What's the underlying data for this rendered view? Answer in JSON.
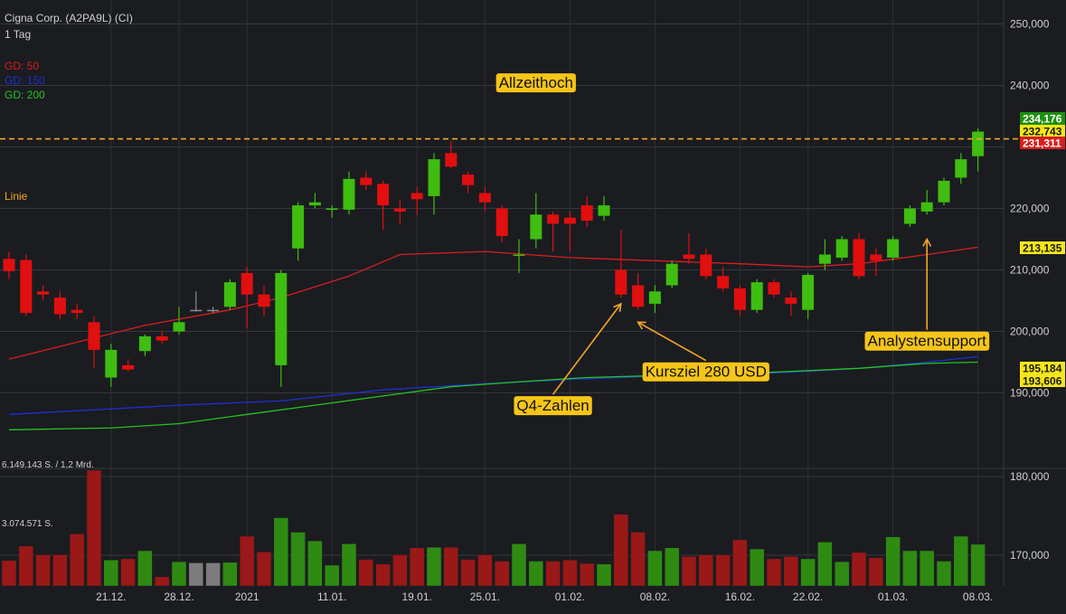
{
  "header": {
    "instrument": "Cigna Corp. (A2PA9L) (CI)",
    "timeframe": "1 Tag"
  },
  "indicators": [
    {
      "label": "GD: 50",
      "color": "#d81e1e"
    },
    {
      "label": "GD: 150",
      "color": "#1f2fd8"
    },
    {
      "label": "GD: 200",
      "color": "#23c21f"
    }
  ],
  "line_label": {
    "text": "Linie",
    "color": "#f5a623"
  },
  "volume_labels": {
    "max": "6.149.143 S. / 1,2 Mrd.",
    "mid": "3.074.571 S."
  },
  "colors": {
    "up": "#3fbd10",
    "down": "#e10f0f",
    "neutral": "#8c8c8c",
    "background": "#1a1c20",
    "annotation": "#f5c518"
  },
  "chart_data": {
    "type": "candlestick",
    "title": "Cigna Corp. (A2PA9L) (CI)",
    "y_axis": {
      "ticks": [
        {
          "value": 250000,
          "label": "250,000"
        },
        {
          "value": 240000,
          "label": "240,000"
        },
        {
          "value": 230000,
          "label": ""
        },
        {
          "value": 220000,
          "label": "220,000"
        },
        {
          "value": 210000,
          "label": "210,000"
        },
        {
          "value": 200000,
          "label": "200,000"
        },
        {
          "value": 190000,
          "label": "190,000"
        },
        {
          "value": 180000,
          "label": "180,000"
        },
        {
          "value": 170000,
          "label": "170,000"
        }
      ]
    },
    "x_axis": {
      "ticks": [
        {
          "label": "21.12.",
          "index": 6
        },
        {
          "label": "28.12.",
          "index": 10
        },
        {
          "label": "2021",
          "index": 14
        },
        {
          "label": "11.01.",
          "index": 19
        },
        {
          "label": "19.01.",
          "index": 24
        },
        {
          "label": "25.01.",
          "index": 28
        },
        {
          "label": "01.02.",
          "index": 33
        },
        {
          "label": "08.02.",
          "index": 38
        },
        {
          "label": "16.02.",
          "index": 43
        },
        {
          "label": "22.02.",
          "index": 47
        },
        {
          "label": "01.03.",
          "index": 52
        },
        {
          "label": "08.03.",
          "index": 57
        }
      ]
    },
    "candles": [
      {
        "o": 211.8,
        "h": 213.0,
        "l": 208.5,
        "c": 209.8,
        "v": 0.44,
        "dir": "down"
      },
      {
        "o": 211.6,
        "h": 212.5,
        "l": 202.5,
        "c": 203.0,
        "v": 0.69,
        "dir": "down"
      },
      {
        "o": 206.5,
        "h": 207.5,
        "l": 205.0,
        "c": 206.0,
        "v": 0.54,
        "dir": "down"
      },
      {
        "o": 205.5,
        "h": 206.5,
        "l": 202.0,
        "c": 202.8,
        "v": 0.54,
        "dir": "down"
      },
      {
        "o": 203.5,
        "h": 204.5,
        "l": 202.0,
        "c": 203.0,
        "v": 0.9,
        "dir": "down"
      },
      {
        "o": 201.5,
        "h": 202.5,
        "l": 194.0,
        "c": 197.0,
        "v": 2.0,
        "dir": "down"
      },
      {
        "o": 192.5,
        "h": 198.0,
        "l": 191.0,
        "c": 197.0,
        "v": 0.45,
        "dir": "up"
      },
      {
        "o": 194.5,
        "h": 195.5,
        "l": 193.5,
        "c": 193.8,
        "v": 0.47,
        "dir": "down"
      },
      {
        "o": 196.8,
        "h": 199.5,
        "l": 196.0,
        "c": 199.2,
        "v": 0.61,
        "dir": "up"
      },
      {
        "o": 199.2,
        "h": 200.0,
        "l": 198.0,
        "c": 198.5,
        "v": 0.16,
        "dir": "down"
      },
      {
        "o": 200.0,
        "h": 204.0,
        "l": 199.5,
        "c": 201.5,
        "v": 0.42,
        "dir": "up"
      },
      {
        "o": 203.5,
        "h": 206.5,
        "l": 203.2,
        "c": 203.5,
        "v": 0.4,
        "dir": "neutral"
      },
      {
        "o": 203.5,
        "h": 204.0,
        "l": 203.0,
        "c": 203.5,
        "v": 0.4,
        "dir": "neutral"
      },
      {
        "o": 204.0,
        "h": 208.5,
        "l": 203.5,
        "c": 208.0,
        "v": 0.41,
        "dir": "up"
      },
      {
        "o": 209.5,
        "h": 210.5,
        "l": 200.5,
        "c": 206.0,
        "v": 0.86,
        "dir": "down"
      },
      {
        "o": 206.0,
        "h": 207.5,
        "l": 202.5,
        "c": 204.0,
        "v": 0.59,
        "dir": "down"
      },
      {
        "o": 194.5,
        "h": 210.0,
        "l": 191.0,
        "c": 209.5,
        "v": 1.18,
        "dir": "up"
      },
      {
        "o": 213.5,
        "h": 221.0,
        "l": 211.5,
        "c": 220.5,
        "v": 0.93,
        "dir": "up"
      },
      {
        "o": 220.5,
        "h": 222.5,
        "l": 220.0,
        "c": 221.0,
        "v": 0.78,
        "dir": "up"
      },
      {
        "o": 219.8,
        "h": 220.5,
        "l": 218.5,
        "c": 220.0,
        "v": 0.36,
        "dir": "up"
      },
      {
        "o": 219.8,
        "h": 226.0,
        "l": 219.0,
        "c": 224.8,
        "v": 0.73,
        "dir": "up"
      },
      {
        "o": 225.0,
        "h": 226.0,
        "l": 223.0,
        "c": 223.8,
        "v": 0.46,
        "dir": "down"
      },
      {
        "o": 224.0,
        "h": 224.5,
        "l": 216.5,
        "c": 220.5,
        "v": 0.38,
        "dir": "down"
      },
      {
        "o": 220.0,
        "h": 221.5,
        "l": 217.5,
        "c": 219.5,
        "v": 0.54,
        "dir": "down"
      },
      {
        "o": 222.5,
        "h": 223.5,
        "l": 219.0,
        "c": 221.5,
        "v": 0.66,
        "dir": "down"
      },
      {
        "o": 222.0,
        "h": 229.0,
        "l": 219.0,
        "c": 228.0,
        "v": 0.67,
        "dir": "up"
      },
      {
        "o": 229.0,
        "h": 231.0,
        "l": 226.5,
        "c": 226.8,
        "v": 0.67,
        "dir": "down"
      },
      {
        "o": 225.5,
        "h": 226.0,
        "l": 222.5,
        "c": 223.8,
        "v": 0.46,
        "dir": "down"
      },
      {
        "o": 222.5,
        "h": 223.5,
        "l": 219.5,
        "c": 221.0,
        "v": 0.54,
        "dir": "down"
      },
      {
        "o": 220.0,
        "h": 220.5,
        "l": 214.5,
        "c": 215.5,
        "v": 0.43,
        "dir": "down"
      },
      {
        "o": 212.5,
        "h": 215.0,
        "l": 209.5,
        "c": 212.5,
        "v": 0.73,
        "dir": "up"
      },
      {
        "o": 215.0,
        "h": 222.5,
        "l": 213.5,
        "c": 219.0,
        "v": 0.43,
        "dir": "up"
      },
      {
        "o": 219.0,
        "h": 219.5,
        "l": 213.0,
        "c": 217.5,
        "v": 0.43,
        "dir": "down"
      },
      {
        "o": 218.5,
        "h": 219.5,
        "l": 213.0,
        "c": 217.5,
        "v": 0.45,
        "dir": "down"
      },
      {
        "o": 218.0,
        "h": 222.0,
        "l": 217.0,
        "c": 220.5,
        "v": 0.39,
        "dir": "down"
      },
      {
        "o": 218.8,
        "h": 222.0,
        "l": 218.0,
        "c": 220.5,
        "v": 0.38,
        "dir": "up"
      },
      {
        "o": 210.0,
        "h": 216.5,
        "l": 205.5,
        "c": 206.0,
        "v": 1.24,
        "dir": "down"
      },
      {
        "o": 207.5,
        "h": 209.5,
        "l": 203.5,
        "c": 204.0,
        "v": 0.93,
        "dir": "down"
      },
      {
        "o": 204.5,
        "h": 207.5,
        "l": 203.0,
        "c": 206.5,
        "v": 0.61,
        "dir": "up"
      },
      {
        "o": 207.5,
        "h": 211.5,
        "l": 207.0,
        "c": 211.0,
        "v": 0.66,
        "dir": "up"
      },
      {
        "o": 212.5,
        "h": 216.0,
        "l": 211.0,
        "c": 211.8,
        "v": 0.51,
        "dir": "down"
      },
      {
        "o": 212.5,
        "h": 213.5,
        "l": 208.5,
        "c": 209.0,
        "v": 0.54,
        "dir": "down"
      },
      {
        "o": 209.0,
        "h": 210.5,
        "l": 206.5,
        "c": 207.0,
        "v": 0.54,
        "dir": "down"
      },
      {
        "o": 207.0,
        "h": 207.5,
        "l": 202.5,
        "c": 203.5,
        "v": 0.8,
        "dir": "down"
      },
      {
        "o": 203.5,
        "h": 208.5,
        "l": 203.0,
        "c": 208.0,
        "v": 0.64,
        "dir": "up"
      },
      {
        "o": 208.0,
        "h": 208.5,
        "l": 205.5,
        "c": 206.0,
        "v": 0.47,
        "dir": "down"
      },
      {
        "o": 205.5,
        "h": 206.5,
        "l": 202.5,
        "c": 204.5,
        "v": 0.51,
        "dir": "down"
      },
      {
        "o": 203.5,
        "h": 209.5,
        "l": 202.0,
        "c": 209.2,
        "v": 0.47,
        "dir": "up"
      },
      {
        "o": 211.0,
        "h": 215.0,
        "l": 210.0,
        "c": 212.5,
        "v": 0.76,
        "dir": "up"
      },
      {
        "o": 212.0,
        "h": 215.5,
        "l": 211.5,
        "c": 215.0,
        "v": 0.42,
        "dir": "up"
      },
      {
        "o": 215.0,
        "h": 216.0,
        "l": 208.5,
        "c": 209.0,
        "v": 0.58,
        "dir": "down"
      },
      {
        "o": 212.5,
        "h": 213.5,
        "l": 209.0,
        "c": 211.5,
        "v": 0.49,
        "dir": "down"
      },
      {
        "o": 212.0,
        "h": 215.5,
        "l": 211.5,
        "c": 215.0,
        "v": 0.85,
        "dir": "up"
      },
      {
        "o": 217.5,
        "h": 220.5,
        "l": 217.0,
        "c": 220.0,
        "v": 0.61,
        "dir": "up"
      },
      {
        "o": 219.5,
        "h": 223.0,
        "l": 219.0,
        "c": 221.0,
        "v": 0.61,
        "dir": "up"
      },
      {
        "o": 221.0,
        "h": 225.0,
        "l": 220.5,
        "c": 224.5,
        "v": 0.43,
        "dir": "up"
      },
      {
        "o": 225.0,
        "h": 229.0,
        "l": 224.0,
        "c": 228.0,
        "v": 0.86,
        "dir": "up"
      },
      {
        "o": 228.5,
        "h": 233.0,
        "l": 226.0,
        "c": 232.5,
        "v": 0.72,
        "dir": "up"
      }
    ],
    "moving_averages": [
      {
        "name": "GD: 50",
        "color": "#d81e1e",
        "values": [
          [
            0,
            195.5
          ],
          [
            8,
            201.0
          ],
          [
            13,
            203.5
          ],
          [
            16,
            205.5
          ],
          [
            20,
            209.0
          ],
          [
            23,
            212.5
          ],
          [
            28,
            213.0
          ],
          [
            33,
            212.0
          ],
          [
            38,
            211.5
          ],
          [
            43,
            211.0
          ],
          [
            47,
            210.5
          ],
          [
            50,
            211.0
          ],
          [
            54,
            212.5
          ],
          [
            57,
            213.7
          ]
        ]
      },
      {
        "name": "GD: 150",
        "color": "#1f2fd8",
        "values": [
          [
            0,
            186.5
          ],
          [
            10,
            188.0
          ],
          [
            16,
            188.7
          ],
          [
            22,
            190.5
          ],
          [
            28,
            191.5
          ],
          [
            33,
            192.2
          ],
          [
            38,
            192.7
          ],
          [
            43,
            193.0
          ],
          [
            47,
            193.5
          ],
          [
            50,
            194.0
          ],
          [
            54,
            195.0
          ],
          [
            57,
            195.9
          ]
        ]
      },
      {
        "name": "GD: 200",
        "color": "#23c21f",
        "values": [
          [
            0,
            184.0
          ],
          [
            6,
            184.3
          ],
          [
            10,
            185.0
          ],
          [
            14,
            186.5
          ],
          [
            18,
            188.0
          ],
          [
            22,
            189.5
          ],
          [
            26,
            191.0
          ],
          [
            30,
            191.8
          ],
          [
            34,
            192.5
          ],
          [
            38,
            192.8
          ],
          [
            42,
            193.0
          ],
          [
            46,
            193.5
          ],
          [
            50,
            194.0
          ],
          [
            54,
            194.8
          ],
          [
            57,
            195.0
          ]
        ]
      }
    ],
    "horizontal_line": {
      "value": 231.311,
      "color": "#f5a623",
      "label": "Linie"
    },
    "price_tags": [
      {
        "label": "234,176",
        "bg": "#1f8f10",
        "fg": "#ffffff",
        "value": 234.176
      },
      {
        "label": "232,743",
        "bg": "#f5e61a",
        "fg": "#1a1a1a",
        "value": 232.743
      },
      {
        "label": "231,311",
        "bg": "#d81e1e",
        "fg": "#ffffff",
        "value": 231.311
      },
      {
        "label": "213,135",
        "bg": "#f5e61a",
        "fg": "#1a1a1a",
        "value": 213.135
      },
      {
        "label": "195,184",
        "bg": "#f5e61a",
        "fg": "#1a1a1a",
        "value": 195.184
      },
      {
        "label": "193,606",
        "bg": "#f5e61a",
        "fg": "#1a1a1a",
        "value": 193.606
      }
    ],
    "annotations": [
      {
        "text": "Allzeithoch",
        "index": 31,
        "value": 240.5,
        "arrow": false
      },
      {
        "text": "Q4-Zahlen",
        "index": 32,
        "value": 188.0,
        "arrow": true,
        "arrow_to_index": 36,
        "arrow_to_value": 204.5
      },
      {
        "text": "Kursziel 280 USD",
        "index": 41,
        "value": 193.5,
        "arrow": true,
        "arrow_to_index": 37,
        "arrow_to_value": 201.5
      },
      {
        "text": "Analystensupport",
        "index": 54,
        "value": 198.5,
        "arrow": true,
        "arrow_to_index": 54,
        "arrow_to_value": 215.0
      }
    ]
  }
}
